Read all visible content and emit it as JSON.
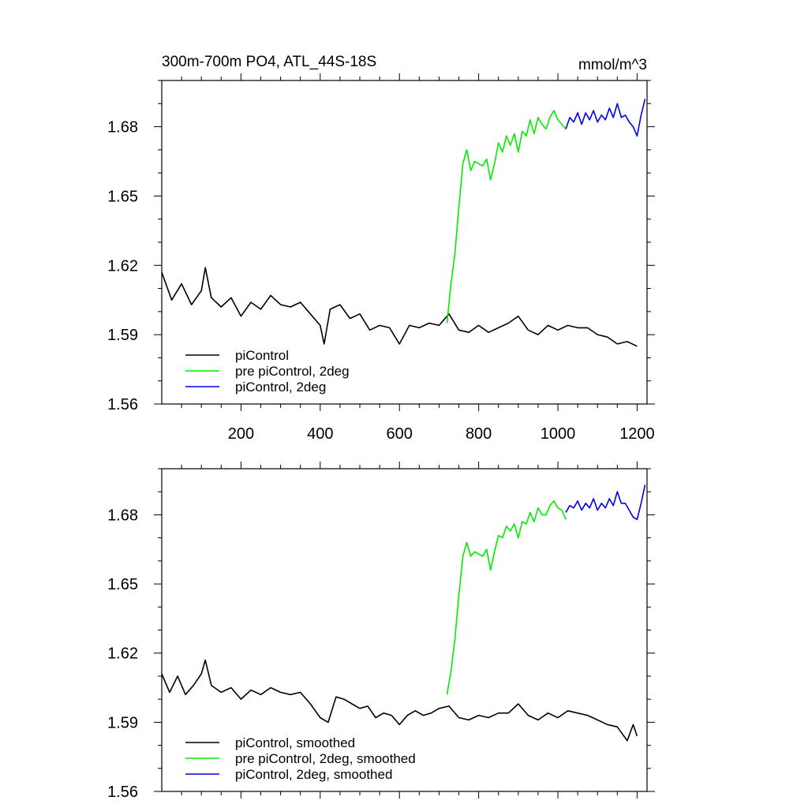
{
  "chart_data": [
    {
      "type": "line",
      "title": "300m-700m PO4, ATL_44S-18S",
      "units_label": "mmol/m^3",
      "xlim": [
        0,
        1225
      ],
      "ylim": [
        1.56,
        1.7
      ],
      "xticks": [
        200,
        400,
        600,
        800,
        1000,
        1200
      ],
      "xtick_labels": [
        "200",
        "400",
        "600",
        "800",
        "1000",
        "1200"
      ],
      "yticks": [
        1.56,
        1.59,
        1.62,
        1.65,
        1.68
      ],
      "ytick_labels": [
        "1.56",
        "1.59",
        "1.62",
        "1.65",
        "1.68"
      ],
      "legend_position": "bottom-left",
      "series": [
        {
          "name": "piControl",
          "color": "#000000",
          "x": [
            0,
            25,
            50,
            75,
            100,
            110,
            125,
            150,
            175,
            200,
            225,
            250,
            275,
            300,
            325,
            350,
            375,
            400,
            410,
            425,
            450,
            475,
            500,
            525,
            550,
            575,
            600,
            625,
            650,
            675,
            700,
            725,
            750,
            775,
            800,
            825,
            850,
            875,
            900,
            925,
            950,
            975,
            1000,
            1025,
            1050,
            1075,
            1100,
            1125,
            1150,
            1175,
            1200
          ],
          "y": [
            1.617,
            1.605,
            1.612,
            1.603,
            1.609,
            1.619,
            1.606,
            1.602,
            1.606,
            1.598,
            1.604,
            1.601,
            1.607,
            1.603,
            1.602,
            1.604,
            1.599,
            1.594,
            1.586,
            1.601,
            1.603,
            1.597,
            1.599,
            1.592,
            1.594,
            1.593,
            1.586,
            1.594,
            1.593,
            1.595,
            1.594,
            1.599,
            1.592,
            1.591,
            1.594,
            1.591,
            1.593,
            1.595,
            1.598,
            1.592,
            1.59,
            1.594,
            1.592,
            1.594,
            1.593,
            1.593,
            1.59,
            1.589,
            1.586,
            1.587,
            1.585
          ]
        },
        {
          "name": "pre piControl, 2deg",
          "color": "#00ee00",
          "x": [
            720,
            730,
            740,
            750,
            760,
            770,
            780,
            790,
            800,
            810,
            820,
            830,
            840,
            850,
            860,
            870,
            880,
            890,
            900,
            910,
            920,
            930,
            940,
            950,
            960,
            970,
            980,
            990,
            1000,
            1010,
            1020
          ],
          "y": [
            1.595,
            1.612,
            1.625,
            1.645,
            1.664,
            1.67,
            1.661,
            1.665,
            1.664,
            1.663,
            1.666,
            1.657,
            1.664,
            1.673,
            1.669,
            1.676,
            1.672,
            1.677,
            1.669,
            1.678,
            1.676,
            1.683,
            1.677,
            1.684,
            1.681,
            1.679,
            1.684,
            1.687,
            1.683,
            1.681,
            1.679
          ]
        },
        {
          "name": "piControl, 2deg",
          "color": "#0000ee",
          "x": [
            1020,
            1030,
            1040,
            1050,
            1060,
            1070,
            1080,
            1090,
            1100,
            1110,
            1120,
            1130,
            1140,
            1150,
            1160,
            1170,
            1180,
            1190,
            1200,
            1210,
            1220
          ],
          "y": [
            1.679,
            1.684,
            1.682,
            1.686,
            1.681,
            1.686,
            1.683,
            1.687,
            1.682,
            1.685,
            1.683,
            1.688,
            1.684,
            1.69,
            1.684,
            1.685,
            1.682,
            1.68,
            1.676,
            1.685,
            1.692
          ]
        }
      ]
    },
    {
      "type": "line",
      "xlim": [
        0,
        1225
      ],
      "ylim": [
        1.56,
        1.7
      ],
      "xticks": [
        200,
        400,
        600,
        800,
        1000,
        1200
      ],
      "yticks": [
        1.56,
        1.59,
        1.62,
        1.65,
        1.68
      ],
      "ytick_labels": [
        "1.56",
        "1.59",
        "1.62",
        "1.65",
        "1.68"
      ],
      "legend_position": "bottom-left",
      "series": [
        {
          "name": "piControl, smoothed",
          "color": "#000000",
          "x": [
            0,
            20,
            40,
            60,
            80,
            100,
            110,
            125,
            150,
            175,
            200,
            225,
            250,
            275,
            300,
            325,
            350,
            375,
            400,
            420,
            440,
            460,
            480,
            500,
            520,
            540,
            560,
            580,
            600,
            620,
            640,
            660,
            680,
            700,
            725,
            750,
            775,
            800,
            825,
            850,
            875,
            900,
            925,
            950,
            975,
            1000,
            1025,
            1050,
            1075,
            1100,
            1125,
            1150,
            1175,
            1190,
            1200
          ],
          "y": [
            1.611,
            1.603,
            1.61,
            1.602,
            1.606,
            1.611,
            1.617,
            1.606,
            1.603,
            1.605,
            1.6,
            1.604,
            1.602,
            1.605,
            1.603,
            1.602,
            1.603,
            1.598,
            1.592,
            1.59,
            1.601,
            1.6,
            1.598,
            1.596,
            1.597,
            1.592,
            1.594,
            1.593,
            1.589,
            1.593,
            1.595,
            1.593,
            1.594,
            1.596,
            1.597,
            1.592,
            1.591,
            1.593,
            1.592,
            1.594,
            1.594,
            1.598,
            1.593,
            1.591,
            1.594,
            1.592,
            1.595,
            1.594,
            1.593,
            1.591,
            1.589,
            1.588,
            1.582,
            1.589,
            1.584
          ]
        },
        {
          "name": "pre piControl, 2deg, smoothed",
          "color": "#00ee00",
          "x": [
            720,
            730,
            740,
            750,
            760,
            770,
            780,
            790,
            800,
            810,
            820,
            830,
            840,
            850,
            860,
            870,
            880,
            890,
            900,
            910,
            920,
            930,
            940,
            950,
            960,
            970,
            980,
            990,
            1000,
            1010,
            1020
          ],
          "y": [
            1.602,
            1.612,
            1.626,
            1.645,
            1.662,
            1.668,
            1.662,
            1.664,
            1.663,
            1.662,
            1.665,
            1.656,
            1.664,
            1.671,
            1.67,
            1.675,
            1.673,
            1.676,
            1.67,
            1.677,
            1.676,
            1.681,
            1.677,
            1.683,
            1.68,
            1.68,
            1.684,
            1.686,
            1.683,
            1.682,
            1.678
          ]
        },
        {
          "name": "piControl, 2deg, smoothed",
          "color": "#0000ee",
          "x": [
            1020,
            1030,
            1040,
            1050,
            1060,
            1070,
            1080,
            1090,
            1100,
            1110,
            1120,
            1130,
            1140,
            1150,
            1160,
            1170,
            1180,
            1190,
            1200,
            1210,
            1220
          ],
          "y": [
            1.681,
            1.684,
            1.683,
            1.686,
            1.682,
            1.685,
            1.683,
            1.687,
            1.682,
            1.685,
            1.683,
            1.687,
            1.684,
            1.69,
            1.685,
            1.685,
            1.682,
            1.679,
            1.678,
            1.685,
            1.693
          ]
        }
      ]
    }
  ]
}
